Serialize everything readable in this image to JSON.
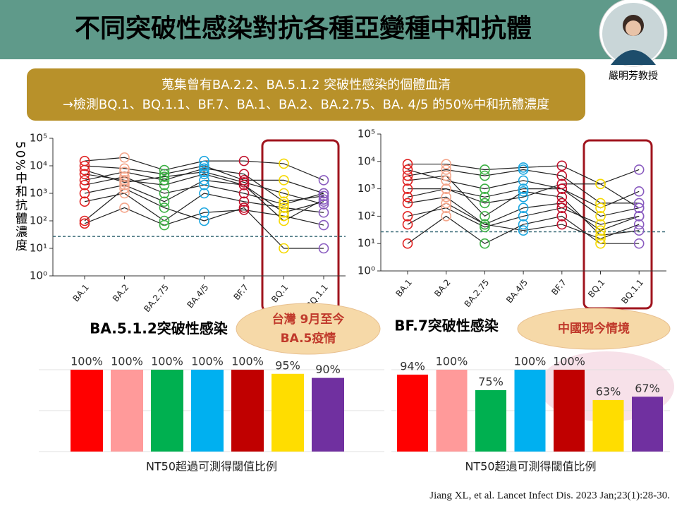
{
  "header": {
    "title": "不同突破性感染對抗各種亞變種中和抗體",
    "speaker": "嚴明芳教授"
  },
  "banner": {
    "line1": "蒐集曾有BA.2.2、BA.5.1.2 突破性感染的個體血清",
    "line2": "→檢測BQ.1、BQ.1.1、BF.7、BA.1、BA.2、BA.2.75、BA. 4/5 的50%中和抗體濃度"
  },
  "callouts": {
    "taiwan": [
      "台灣 9月至今",
      "BA.5疫情"
    ],
    "china": "中國現今情境"
  },
  "citation": "Jiang XL, et al. Lancet Infect Dis. 2023 Jan;23(1):28-30.",
  "chart_data": [
    {
      "type": "line",
      "title": "BA.5.1.2突破性感染",
      "y_label": "50%中和抗體濃度",
      "categories": [
        "BA.1",
        "BA.2",
        "BA.2.75",
        "BA.4/5",
        "BF.7",
        "BQ.1",
        "BQ.1.1"
      ],
      "point_colors": [
        "#e02020",
        "#f4a58a",
        "#3cb043",
        "#1aa6e0",
        "#c0102a",
        "#f5d800",
        "#8a5cc0"
      ],
      "line_color": "#222222",
      "log_scale": true,
      "ylim": [
        1,
        100000
      ],
      "yticks": [
        {
          "value": 1,
          "label": "10⁰"
        },
        {
          "value": 10,
          "label": "10¹"
        },
        {
          "value": 100,
          "label": "10²"
        },
        {
          "value": 1000,
          "label": "10³"
        },
        {
          "value": 10000,
          "label": "10⁴"
        },
        {
          "value": 100000,
          "label": "10⁵"
        }
      ],
      "reference_line": 27,
      "series": [
        {
          "values": [
            10000,
            8000,
            5000,
            10000,
            3000,
            3000,
            1000
          ]
        },
        {
          "values": [
            5000,
            3000,
            2000,
            5000,
            2000,
            200,
            500
          ]
        },
        {
          "values": [
            1000,
            2000,
            500,
            3000,
            2000,
            100,
            600
          ]
        },
        {
          "values": [
            100,
            1500,
            300,
            100,
            300,
            10,
            10
          ]
        },
        {
          "values": [
            15000,
            20000,
            7000,
            15000,
            15000,
            12000,
            3000
          ]
        },
        {
          "values": [
            3000,
            6000,
            3000,
            8000,
            5000,
            500,
            800
          ]
        },
        {
          "values": [
            500,
            1000,
            100,
            1000,
            500,
            300,
            200
          ]
        },
        {
          "values": [
            80,
            300,
            70,
            200,
            250,
            150,
            70
          ]
        },
        {
          "values": [
            2000,
            4000,
            1000,
            2000,
            1000,
            400,
            1000
          ]
        },
        {
          "values": [
            7000,
            2500,
            4000,
            6000,
            2500,
            1000,
            400
          ]
        }
      ]
    },
    {
      "type": "line",
      "title": "BF.7突破性感染",
      "categories": [
        "BA.1",
        "BA.2",
        "BA.2.75",
        "BA.4/5",
        "BF.7",
        "BQ.1",
        "BQ.1.1"
      ],
      "point_colors": [
        "#e02020",
        "#f4a58a",
        "#3cb043",
        "#1aa6e0",
        "#c0102a",
        "#f5d800",
        "#8a5cc0"
      ],
      "line_color": "#222222",
      "log_scale": true,
      "ylim": [
        1,
        100000
      ],
      "yticks": [
        {
          "value": 1,
          "label": "10⁰"
        },
        {
          "value": 10,
          "label": "10¹"
        },
        {
          "value": 100,
          "label": "10²"
        },
        {
          "value": 1000,
          "label": "10³"
        },
        {
          "value": 10000,
          "label": "10⁴"
        },
        {
          "value": 100000,
          "label": "10⁵"
        }
      ],
      "reference_line": 27,
      "series": [
        {
          "values": [
            8000,
            8000,
            5000,
            6000,
            7000,
            1500,
            5000
          ]
        },
        {
          "values": [
            1000,
            1000,
            500,
            1000,
            1000,
            200,
            800
          ]
        },
        {
          "values": [
            300,
            500,
            50,
            200,
            300,
            30,
            100
          ]
        },
        {
          "values": [
            10,
            100,
            10,
            50,
            100,
            10,
            10
          ]
        },
        {
          "values": [
            3000,
            5000,
            3000,
            5000,
            3000,
            300,
            300
          ]
        },
        {
          "values": [
            100,
            200,
            40,
            100,
            200,
            50,
            100
          ]
        },
        {
          "values": [
            5000,
            2000,
            1000,
            2000,
            1000,
            100,
            200
          ]
        },
        {
          "values": [
            50,
            300,
            50,
            30,
            50,
            15,
            50
          ]
        },
        {
          "values": [
            500,
            1000,
            300,
            500,
            1500,
            1500,
            200
          ]
        },
        {
          "values": [
            2000,
            3000,
            100,
            800,
            500,
            20,
            30
          ]
        }
      ]
    },
    {
      "type": "bar",
      "x_label": "NT50超過可測得閾值比例",
      "categories": [
        null,
        null,
        null,
        null,
        null,
        null,
        null
      ],
      "colors": [
        "#ff0000",
        "#ff9a9a",
        "#00b050",
        "#00b0f0",
        "#c00000",
        "#ffdd00",
        "#7030a0"
      ],
      "values": [
        100,
        100,
        100,
        100,
        100,
        95,
        90
      ],
      "value_labels": [
        "100%",
        "100%",
        "100%",
        "100%",
        "100%",
        "95%",
        "90%"
      ],
      "ylim": [
        0,
        100
      ]
    },
    {
      "type": "bar",
      "x_label": "NT50超過可測得閾值比例",
      "categories": [
        null,
        null,
        null,
        null,
        null,
        null,
        null
      ],
      "colors": [
        "#ff0000",
        "#ff9a9a",
        "#00b050",
        "#00b0f0",
        "#c00000",
        "#ffdd00",
        "#7030a0"
      ],
      "values": [
        94,
        100,
        75,
        100,
        100,
        63,
        67
      ],
      "value_labels": [
        "94%",
        "100%",
        "75%",
        "100%",
        "100%",
        "63%",
        "67%"
      ],
      "ylim": [
        0,
        100
      ]
    }
  ]
}
